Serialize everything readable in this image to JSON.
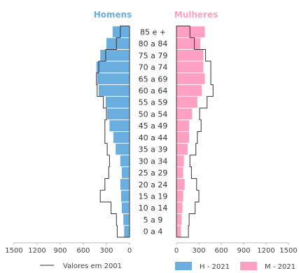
{
  "chart_data": {
    "type": "bar",
    "title": "",
    "categories": [
      "85 e +",
      "80 a 84",
      "75 a 79",
      "70 a 74",
      "65 a 69",
      "60 a 64",
      "55 a 59",
      "50 a 54",
      "45 a 49",
      "40 a 44",
      "35 a 39",
      "30 a 34",
      "25 a 29",
      "20 a 24",
      "15 a 19",
      "10 a 14",
      "5 a 9",
      "0 a 4"
    ],
    "left_panel_title": "Homens",
    "right_panel_title": "Mulheres",
    "x_ticks_left": [
      "1500",
      "1200",
      "900",
      "600",
      "300",
      "0"
    ],
    "x_ticks_right": [
      "0",
      "300",
      "600",
      "900",
      "1200",
      "1500"
    ],
    "xlim": [
      0,
      1500
    ],
    "series": [
      {
        "name": "H - 2021",
        "color": "#6aaee0",
        "values": [
          220,
          300,
          380,
          430,
          420,
          400,
          310,
          290,
          260,
          210,
          180,
          120,
          100,
          120,
          110,
          100,
          80,
          70
        ]
      },
      {
        "name": "M - 2021",
        "color": "#ff9fc2",
        "values": [
          380,
          320,
          360,
          360,
          380,
          340,
          280,
          210,
          170,
          170,
          150,
          100,
          90,
          110,
          90,
          80,
          70,
          60
        ]
      },
      {
        "name": "Valores em 2001",
        "color": "#333333",
        "values_men": [
          120,
          170,
          310,
          400,
          430,
          420,
          340,
          300,
          320,
          320,
          290,
          260,
          270,
          320,
          380,
          240,
          170,
          160
        ],
        "values_women": [
          180,
          240,
          390,
          460,
          460,
          490,
          410,
          310,
          330,
          280,
          260,
          180,
          200,
          270,
          300,
          250,
          170,
          160
        ]
      }
    ],
    "legend": {
      "line_label": "Valores em 2001",
      "men_label": "H - 2021",
      "women_label": "M - 2021"
    }
  }
}
